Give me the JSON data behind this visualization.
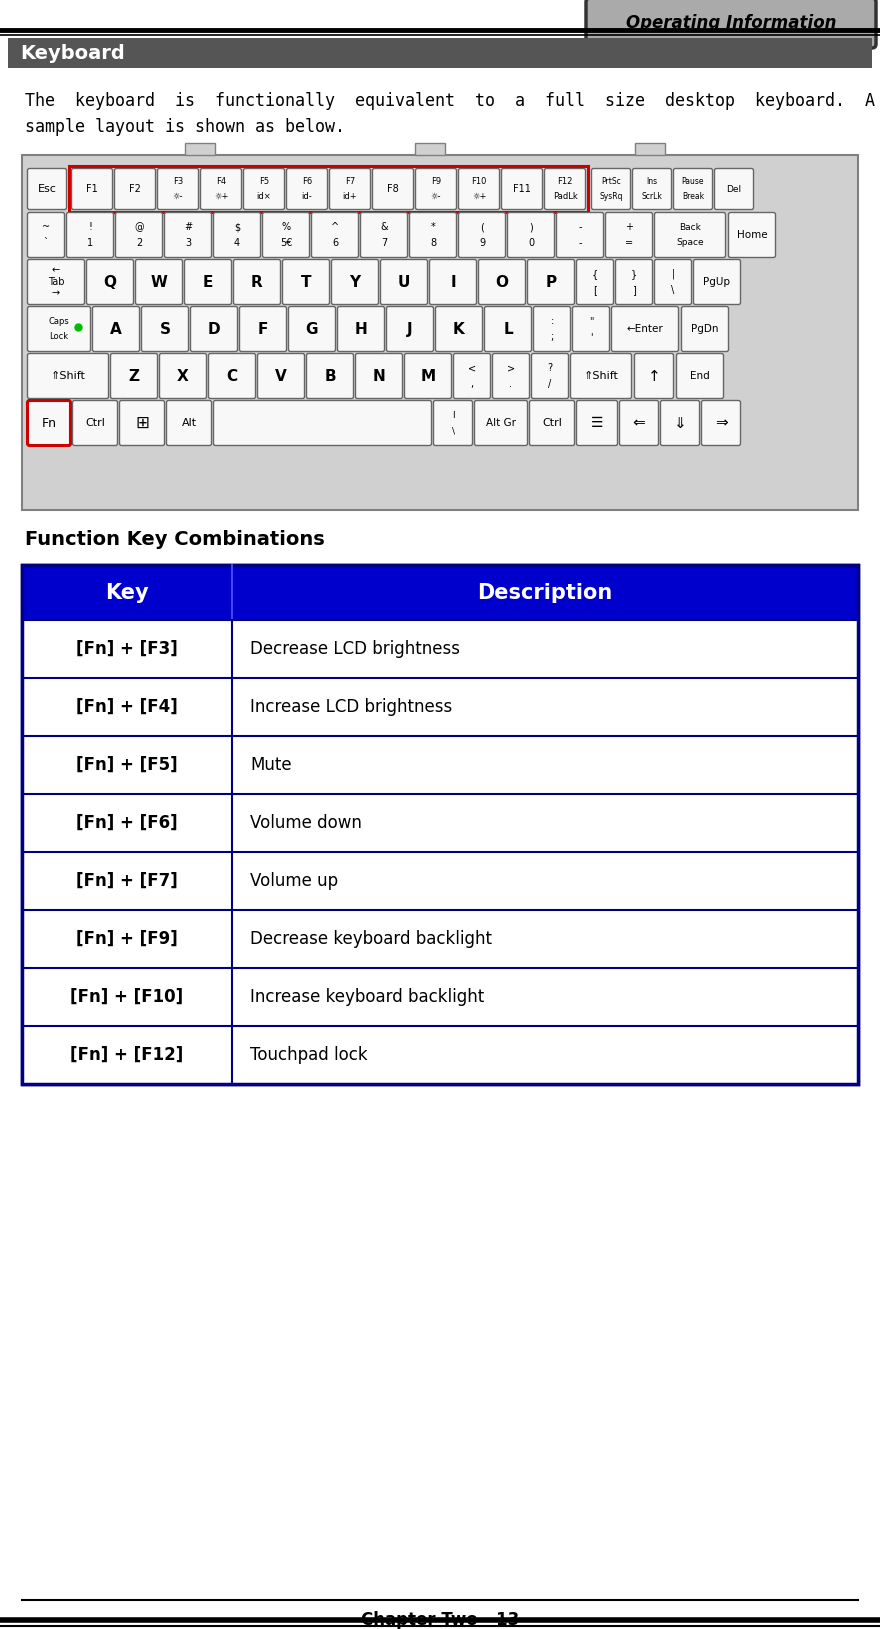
{
  "page_bg": "#ffffff",
  "header_label": "Operating Information",
  "header_label_bg": "#aaaaaa",
  "section_title": "Keyboard",
  "section_title_bg": "#555555",
  "section_title_color": "#ffffff",
  "body_text_line1": "The  keyboard  is  functionally  equivalent  to  a  full  size  desktop  keyboard.  A",
  "body_text_line2": "sample layout is shown as below.",
  "func_key_title": "Function Key Combinations",
  "table_header_bg": "#0000cc",
  "table_header_color": "#ffffff",
  "table_border_color": "#000080",
  "table_col1_header": "Key",
  "table_col2_header": "Description",
  "table_rows": [
    [
      "[Fn] + [F3]",
      "Decrease LCD brightness"
    ],
    [
      "[Fn] + [F4]",
      "Increase LCD brightness"
    ],
    [
      "[Fn] + [F5]",
      "Mute"
    ],
    [
      "[Fn] + [F6]",
      "Volume down"
    ],
    [
      "[Fn] + [F7]",
      "Volume up"
    ],
    [
      "[Fn] + [F9]",
      "Decrease keyboard backlight"
    ],
    [
      "[Fn] + [F10]",
      "Increase keyboard backlight"
    ],
    [
      "[Fn] + [F12]",
      "Touchpad lock"
    ]
  ],
  "footer_text": "Chapter Two - 13",
  "fig_width": 8.8,
  "fig_height": 16.29,
  "dpi": 100
}
